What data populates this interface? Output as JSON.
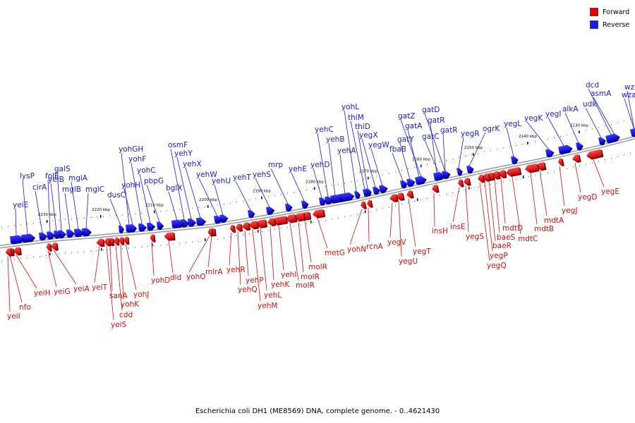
{
  "caption": "Escherichia coli DH1 (ME8569) DNA, complete genome. - 0..4621430",
  "legend": {
    "forward": {
      "label": "Forward",
      "color": "#ee0000"
    },
    "reverse": {
      "label": "Reverse",
      "color": "#1a1aee"
    }
  },
  "ticks": [
    "2130 kbp",
    "2140 kbp",
    "2150 kbp",
    "2160 kbp",
    "2170 kbp",
    "2180 kbp",
    "2190 kbp",
    "2200 kbp",
    "2210 kbp",
    "2220 kbp",
    "2230 kbp"
  ],
  "reverse_genes": [
    "wzb",
    "wza",
    "dcd",
    "udk",
    "asmA",
    "alkA",
    "yegI",
    "yegK",
    "yegL",
    "ogrK",
    "yegR",
    "gatR",
    "gatD",
    "gatR",
    "gatC",
    "gatA",
    "gatZ",
    "gatY",
    "fbaB",
    "yegW",
    "yegX",
    "thiD",
    "thiM",
    "yohL",
    "yehA",
    "yehB",
    "yehC",
    "yehD",
    "yehE",
    "mrp",
    "yehS",
    "yehT",
    "yehU",
    "yehW",
    "yehX",
    "yehY",
    "osmF",
    "bglX",
    "pbpG",
    "yohC",
    "yohF",
    "yohGH",
    "yohH",
    "dusC",
    "mglC",
    "mglA",
    "mglB",
    "galS",
    "yeiB",
    "folE",
    "cirA",
    "lysP",
    "yeiE"
  ],
  "forward_genes": [
    "yegE",
    "yegD",
    "yegJ",
    "mdtA",
    "mdtB",
    "mdtC",
    "mdtD",
    "baeS",
    "baeR",
    "yegP",
    "yegQ",
    "yegS",
    "insE",
    "insH",
    "yegT",
    "yegU",
    "yegV",
    "rcnA",
    "yohN",
    "metG",
    "molR",
    "molR",
    "molR",
    "yehI",
    "yehK",
    "yehL",
    "yehM",
    "yehP",
    "yehQ",
    "yehR",
    "mlrA",
    "yohO",
    "dld",
    "yohD",
    "yohJ",
    "yohK",
    "cdd",
    "sanA",
    "yeiS",
    "yeiT",
    "yeiA",
    "yeiG",
    "yeiH",
    "nfo",
    "yeiI"
  ]
}
